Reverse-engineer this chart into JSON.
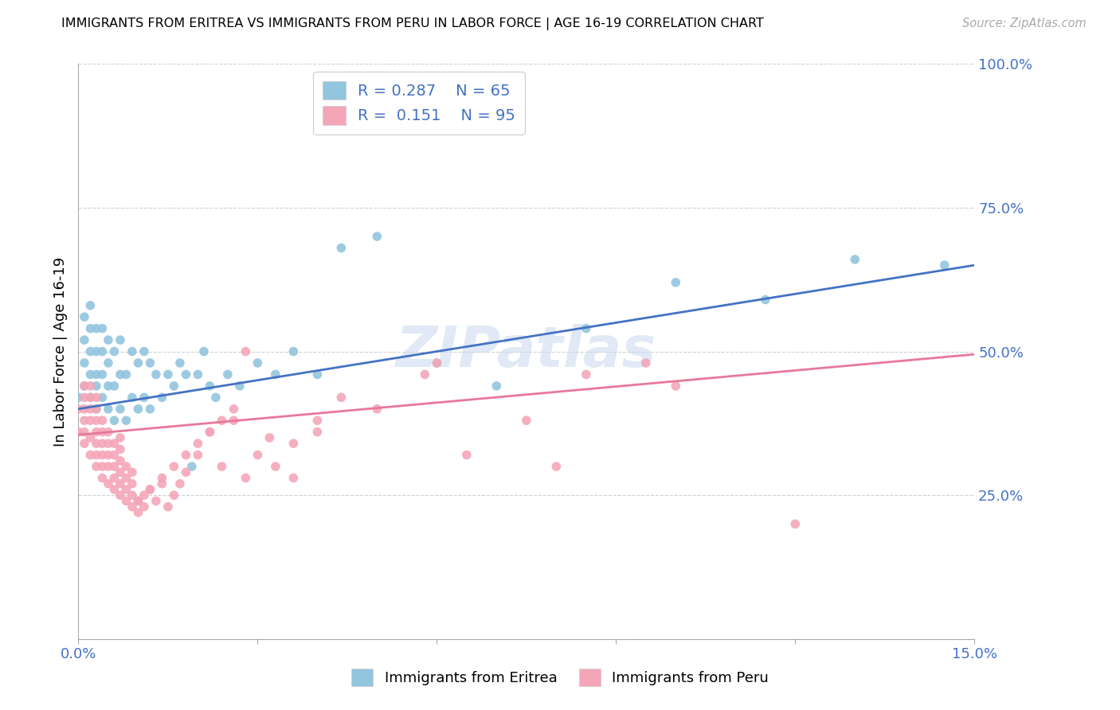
{
  "title": "IMMIGRANTS FROM ERITREA VS IMMIGRANTS FROM PERU IN LABOR FORCE | AGE 16-19 CORRELATION CHART",
  "source": "Source: ZipAtlas.com",
  "ylabel_label": "In Labor Force | Age 16-19",
  "x_min": 0.0,
  "x_max": 0.15,
  "y_min": 0.0,
  "y_max": 1.0,
  "x_ticks": [
    0.0,
    0.03,
    0.06,
    0.09,
    0.12,
    0.15
  ],
  "x_tick_labels": [
    "0.0%",
    "",
    "",
    "",
    "",
    "15.0%"
  ],
  "y_ticks": [
    0.0,
    0.25,
    0.5,
    0.75,
    1.0
  ],
  "y_tick_labels": [
    "",
    "25.0%",
    "50.0%",
    "75.0%",
    "100.0%"
  ],
  "eritrea_color": "#92c5de",
  "peru_color": "#f4a6b8",
  "eritrea_line_color": "#4472c4",
  "peru_line_color": "#e8789a",
  "eritrea_r": 0.287,
  "eritrea_n": 65,
  "peru_r": 0.151,
  "peru_n": 95,
  "watermark": "ZIPatlas",
  "background_color": "#ffffff",
  "grid_color": "#d0d0d0",
  "tick_label_color": "#4472c4",
  "eritrea_x": [
    0.0,
    0.001,
    0.001,
    0.001,
    0.001,
    0.002,
    0.002,
    0.002,
    0.002,
    0.002,
    0.003,
    0.003,
    0.003,
    0.003,
    0.003,
    0.004,
    0.004,
    0.004,
    0.004,
    0.005,
    0.005,
    0.005,
    0.005,
    0.006,
    0.006,
    0.006,
    0.007,
    0.007,
    0.007,
    0.008,
    0.008,
    0.009,
    0.009,
    0.01,
    0.01,
    0.011,
    0.011,
    0.012,
    0.012,
    0.013,
    0.014,
    0.015,
    0.016,
    0.017,
    0.018,
    0.019,
    0.02,
    0.021,
    0.022,
    0.023,
    0.025,
    0.027,
    0.03,
    0.033,
    0.036,
    0.04,
    0.044,
    0.05,
    0.06,
    0.07,
    0.085,
    0.1,
    0.115,
    0.13,
    0.145
  ],
  "eritrea_y": [
    0.42,
    0.44,
    0.48,
    0.52,
    0.56,
    0.42,
    0.46,
    0.5,
    0.54,
    0.58,
    0.4,
    0.44,
    0.46,
    0.5,
    0.54,
    0.42,
    0.46,
    0.5,
    0.54,
    0.4,
    0.44,
    0.48,
    0.52,
    0.38,
    0.44,
    0.5,
    0.4,
    0.46,
    0.52,
    0.38,
    0.46,
    0.42,
    0.5,
    0.4,
    0.48,
    0.42,
    0.5,
    0.4,
    0.48,
    0.46,
    0.42,
    0.46,
    0.44,
    0.48,
    0.46,
    0.3,
    0.46,
    0.5,
    0.44,
    0.42,
    0.46,
    0.44,
    0.48,
    0.46,
    0.5,
    0.46,
    0.68,
    0.7,
    0.48,
    0.44,
    0.54,
    0.62,
    0.59,
    0.66,
    0.65
  ],
  "peru_x": [
    0.0,
    0.0,
    0.001,
    0.001,
    0.001,
    0.001,
    0.001,
    0.001,
    0.002,
    0.002,
    0.002,
    0.002,
    0.002,
    0.002,
    0.003,
    0.003,
    0.003,
    0.003,
    0.003,
    0.003,
    0.003,
    0.004,
    0.004,
    0.004,
    0.004,
    0.004,
    0.004,
    0.005,
    0.005,
    0.005,
    0.005,
    0.005,
    0.006,
    0.006,
    0.006,
    0.006,
    0.006,
    0.007,
    0.007,
    0.007,
    0.007,
    0.007,
    0.007,
    0.008,
    0.008,
    0.008,
    0.008,
    0.009,
    0.009,
    0.009,
    0.009,
    0.01,
    0.01,
    0.011,
    0.011,
    0.012,
    0.013,
    0.014,
    0.015,
    0.016,
    0.017,
    0.018,
    0.02,
    0.022,
    0.024,
    0.026,
    0.028,
    0.03,
    0.033,
    0.036,
    0.04,
    0.044,
    0.05,
    0.058,
    0.065,
    0.075,
    0.085,
    0.095,
    0.01,
    0.012,
    0.014,
    0.016,
    0.018,
    0.02,
    0.022,
    0.024,
    0.026,
    0.028,
    0.032,
    0.036,
    0.04,
    0.06,
    0.08,
    0.1,
    0.12
  ],
  "peru_y": [
    0.36,
    0.4,
    0.34,
    0.36,
    0.38,
    0.4,
    0.42,
    0.44,
    0.32,
    0.35,
    0.38,
    0.4,
    0.42,
    0.44,
    0.3,
    0.32,
    0.34,
    0.36,
    0.38,
    0.4,
    0.42,
    0.28,
    0.3,
    0.32,
    0.34,
    0.36,
    0.38,
    0.27,
    0.3,
    0.32,
    0.34,
    0.36,
    0.26,
    0.28,
    0.3,
    0.32,
    0.34,
    0.25,
    0.27,
    0.29,
    0.31,
    0.33,
    0.35,
    0.24,
    0.26,
    0.28,
    0.3,
    0.23,
    0.25,
    0.27,
    0.29,
    0.22,
    0.24,
    0.23,
    0.25,
    0.26,
    0.24,
    0.27,
    0.23,
    0.25,
    0.27,
    0.29,
    0.32,
    0.36,
    0.3,
    0.38,
    0.28,
    0.32,
    0.3,
    0.34,
    0.38,
    0.42,
    0.4,
    0.46,
    0.32,
    0.38,
    0.46,
    0.48,
    0.24,
    0.26,
    0.28,
    0.3,
    0.32,
    0.34,
    0.36,
    0.38,
    0.4,
    0.5,
    0.35,
    0.28,
    0.36,
    0.48,
    0.3,
    0.44,
    0.2
  ]
}
